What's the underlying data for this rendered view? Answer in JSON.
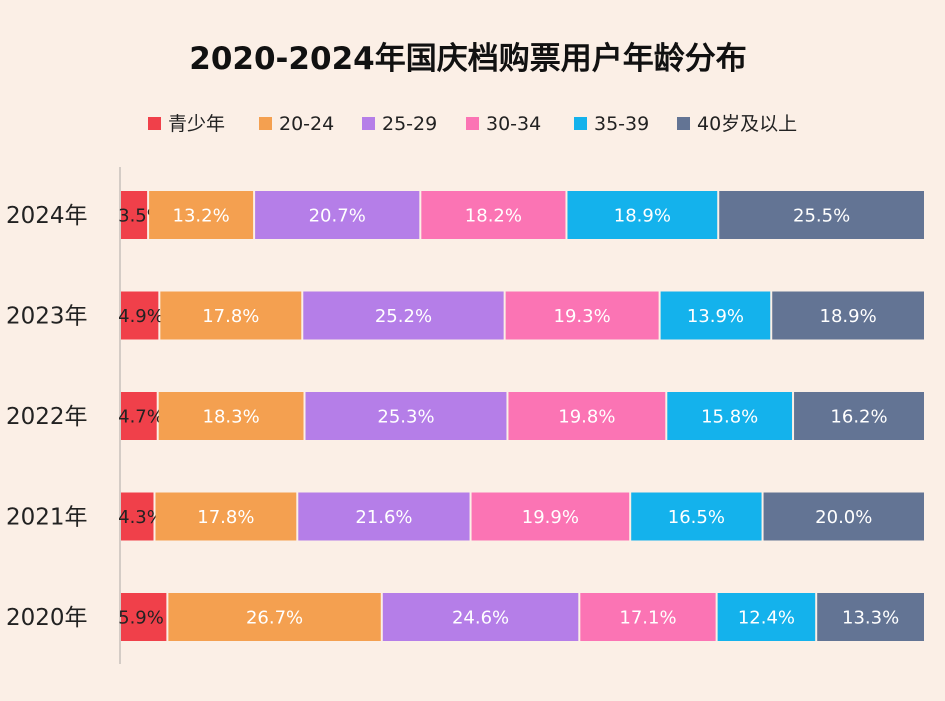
{
  "chart_data": {
    "type": "bar",
    "orientation": "horizontal",
    "stacked": true,
    "percent_stacked": true,
    "title": "2020-2024年国庆档购票用户年龄分布",
    "categories": [
      "2024年",
      "2023年",
      "2022年",
      "2021年",
      "2020年"
    ],
    "series": [
      {
        "name": "青少年",
        "color": "#f0404a",
        "values": [
          3.5,
          4.9,
          4.7,
          4.3,
          5.9
        ]
      },
      {
        "name": "20-24",
        "color": "#f4a050",
        "values": [
          13.2,
          17.8,
          18.3,
          17.8,
          26.7
        ]
      },
      {
        "name": "25-29",
        "color": "#b57ee8",
        "values": [
          20.7,
          25.2,
          25.3,
          21.6,
          24.6
        ]
      },
      {
        "name": "30-34",
        "color": "#fb74b4",
        "values": [
          18.2,
          19.3,
          19.8,
          19.9,
          17.1
        ]
      },
      {
        "name": "35-39",
        "color": "#14b2ec",
        "values": [
          18.9,
          13.9,
          15.8,
          16.5,
          12.4
        ]
      },
      {
        "name": "40岁及以上",
        "color": "#637494",
        "values": [
          25.5,
          18.9,
          16.2,
          20.0,
          13.3
        ]
      }
    ],
    "data_labels": [
      [
        "3.5%",
        "13.2%",
        "20.7%",
        "18.2%",
        "18.9%",
        "25.5%"
      ],
      [
        "4.9%",
        "17.8%",
        "25.2%",
        "19.3%",
        "13.9%",
        "18.9%"
      ],
      [
        "4.7%",
        "18.3%",
        "25.3%",
        "19.8%",
        "15.8%",
        "16.2%"
      ],
      [
        "4.3%",
        "17.8%",
        "21.6%",
        "19.9%",
        "16.5%",
        "20.0%"
      ],
      [
        "5.9%",
        "26.7%",
        "24.6%",
        "17.1%",
        "12.4%",
        "13.3%"
      ]
    ],
    "legend_position": "top",
    "grid": false,
    "xlim": [
      0,
      100
    ]
  }
}
